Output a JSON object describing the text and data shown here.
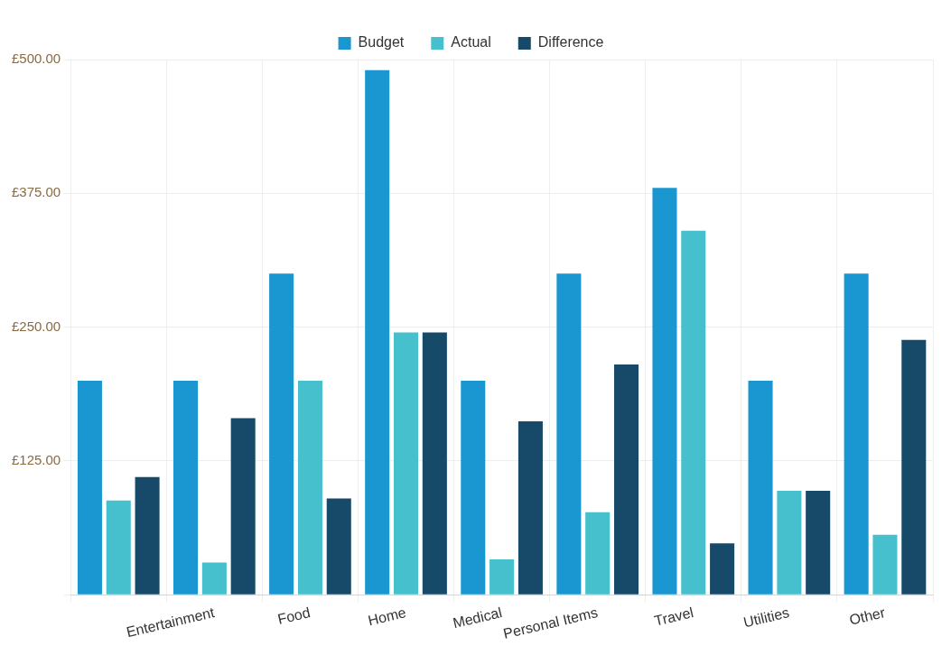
{
  "chart_data": {
    "type": "bar",
    "categories": [
      null,
      "Entertainment",
      "Food",
      "Home",
      "Medical",
      "Personal Items",
      "Travel",
      "Utilities",
      "Other"
    ],
    "series": [
      {
        "name": "Budget",
        "color": "#1a96d0",
        "values": [
          200,
          200,
          300,
          490,
          200,
          300,
          380,
          200,
          300
        ]
      },
      {
        "name": "Actual",
        "color": "#45c0cc",
        "values": [
          88,
          30,
          200,
          245,
          33,
          77,
          340,
          97,
          56
        ]
      },
      {
        "name": "Difference",
        "color": "#174a68",
        "values": [
          110,
          165,
          90,
          245,
          162,
          215,
          48,
          97,
          238
        ]
      }
    ],
    "ylim": [
      0,
      500
    ],
    "yticks": [
      {
        "value": 125,
        "label": "£125.00"
      },
      {
        "value": 250,
        "label": "£250.00"
      },
      {
        "value": 375,
        "label": "£375.00"
      },
      {
        "value": 500,
        "label": "£500.00"
      }
    ],
    "grid": true,
    "legend": "top"
  }
}
